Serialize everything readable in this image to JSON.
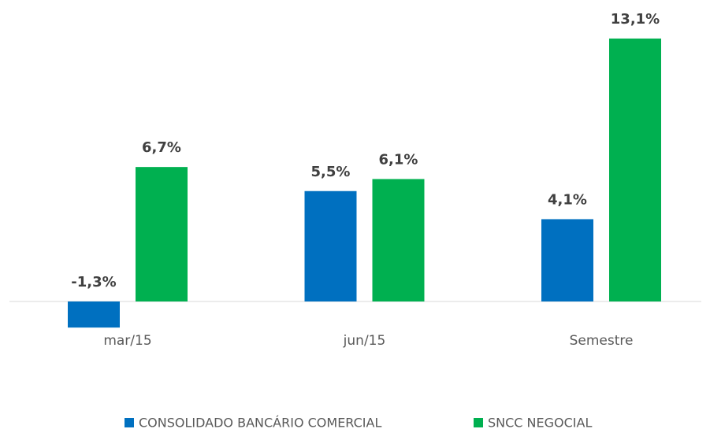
{
  "chart_data": {
    "type": "bar",
    "categories": [
      "mar/15",
      "jun/15",
      "Semestre"
    ],
    "series": [
      {
        "name": "CONSOLIDADO BANCÁRIO COMERCIAL",
        "color": "#0070c0",
        "values": [
          -1.3,
          5.5,
          4.1
        ],
        "value_labels": [
          "-1,3%",
          "5,5%",
          "4,1%"
        ]
      },
      {
        "name": "SNCC NEGOCIAL",
        "color": "#00b050",
        "values": [
          6.7,
          6.1,
          13.1
        ],
        "value_labels": [
          "6,7%",
          "6,1%",
          "13,1%"
        ]
      }
    ],
    "legend": "bottom"
  }
}
